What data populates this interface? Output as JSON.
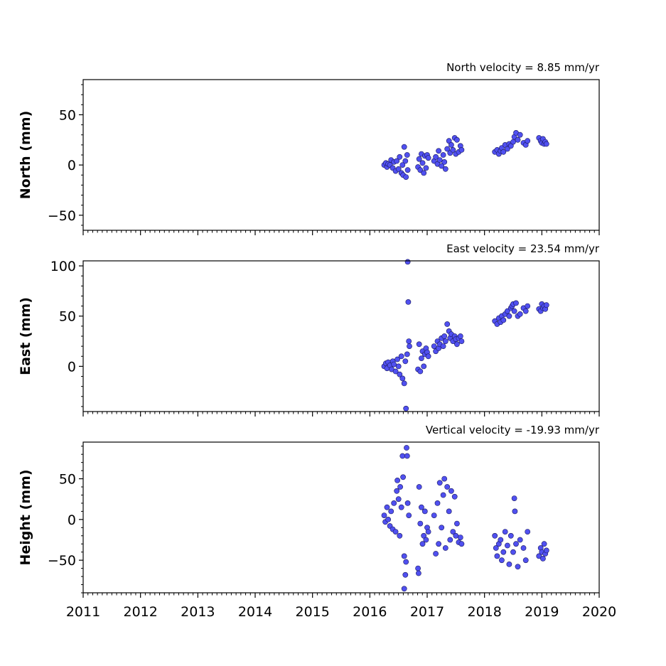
{
  "chart_data": [
    {
      "type": "scatter",
      "title": "North velocity = 8.85 mm/yr",
      "ylabel": "North (mm)",
      "xlim": [
        2011,
        2020
      ],
      "ylim": [
        -65,
        85
      ],
      "yticks": [
        "50",
        "0",
        "−50"
      ],
      "ytick_values": [
        50,
        0,
        -50
      ],
      "series": [
        {
          "x": [
            2016.25,
            2016.28,
            2016.3,
            2016.32,
            2016.35,
            2016.37,
            2016.4,
            2016.42,
            2016.45,
            2016.47,
            2016.5,
            2016.52,
            2016.55,
            2016.57,
            2016.58,
            2016.6,
            2016.62,
            2016.63,
            2016.65,
            2016.66,
            2016.84,
            2016.86,
            2016.88,
            2016.9,
            2016.92,
            2016.94,
            2016.96,
            2016.98,
            2017.0,
            2017.02,
            2017.12,
            2017.15,
            2017.18,
            2017.2,
            2017.22,
            2017.25,
            2017.28,
            2017.3,
            2017.32,
            2017.35,
            2017.38,
            2017.4,
            2017.42,
            2017.45,
            2017.48,
            2017.5,
            2017.52,
            2017.55,
            2017.58,
            2017.6,
            2018.18,
            2018.22,
            2018.25,
            2018.28,
            2018.3,
            2018.33,
            2018.36,
            2018.4,
            2018.43,
            2018.46,
            2018.5,
            2018.52,
            2018.55,
            2018.58,
            2018.62,
            2018.68,
            2018.72,
            2018.75,
            2018.95,
            2018.98,
            2019.0,
            2019.02,
            2019.04,
            2019.06,
            2019.08
          ],
          "y": [
            0,
            2,
            -2,
            1,
            0,
            5,
            -3,
            3,
            -6,
            4,
            -4,
            8,
            -8,
            0,
            -10,
            18,
            4,
            -12,
            10,
            -5,
            -2,
            6,
            -5,
            11,
            2,
            -8,
            9,
            -3,
            10,
            7,
            4,
            8,
            1,
            14,
            5,
            -1,
            10,
            3,
            -4,
            16,
            24,
            12,
            20,
            15,
            27,
            11,
            25,
            13,
            19,
            15,
            13,
            15,
            11,
            14,
            17,
            13,
            20,
            16,
            21,
            19,
            23,
            28,
            32,
            25,
            30,
            22,
            20,
            24,
            27,
            24,
            22,
            26,
            21,
            23,
            21
          ]
        }
      ]
    },
    {
      "type": "scatter",
      "title": "East velocity = 23.54 mm/yr",
      "ylabel": "East (mm)",
      "xlim": [
        2011,
        2020
      ],
      "ylim": [
        -45,
        105
      ],
      "yticks": [
        "100",
        "50",
        "0"
      ],
      "ytick_values": [
        100,
        50,
        0
      ],
      "series": [
        {
          "x": [
            2016.25,
            2016.28,
            2016.3,
            2016.32,
            2016.35,
            2016.38,
            2016.4,
            2016.42,
            2016.45,
            2016.48,
            2016.5,
            2016.52,
            2016.55,
            2016.57,
            2016.6,
            2016.62,
            2016.63,
            2016.65,
            2016.66,
            2016.67,
            2016.68,
            2016.69,
            2016.84,
            2016.86,
            2016.88,
            2016.9,
            2016.92,
            2016.94,
            2016.96,
            2016.98,
            2017.0,
            2017.02,
            2017.12,
            2017.15,
            2017.18,
            2017.2,
            2017.22,
            2017.25,
            2017.28,
            2017.3,
            2017.32,
            2017.35,
            2017.38,
            2017.4,
            2017.42,
            2017.45,
            2017.48,
            2017.5,
            2017.52,
            2017.55,
            2017.58,
            2017.6,
            2018.18,
            2018.22,
            2018.25,
            2018.28,
            2018.3,
            2018.33,
            2018.36,
            2018.4,
            2018.43,
            2018.46,
            2018.48,
            2018.5,
            2018.52,
            2018.55,
            2018.58,
            2018.62,
            2018.68,
            2018.72,
            2018.75,
            2018.95,
            2018.98,
            2019.0,
            2019.02,
            2019.04,
            2019.06,
            2019.08
          ],
          "y": [
            0,
            3,
            -2,
            4,
            1,
            -3,
            5,
            2,
            -5,
            7,
            0,
            -8,
            10,
            -12,
            -17,
            5,
            -42,
            12,
            104,
            64,
            25,
            20,
            -3,
            22,
            -5,
            8,
            15,
            0,
            12,
            18,
            14,
            10,
            20,
            15,
            25,
            18,
            22,
            28,
            20,
            30,
            25,
            42,
            35,
            28,
            32,
            25,
            30,
            27,
            22,
            28,
            30,
            25,
            45,
            42,
            48,
            44,
            50,
            46,
            52,
            55,
            50,
            58,
            60,
            62,
            55,
            63,
            50,
            52,
            58,
            55,
            60,
            57,
            55,
            62,
            58,
            60,
            57,
            61
          ]
        }
      ]
    },
    {
      "type": "scatter",
      "title": "Vertical velocity = -19.93 mm/yr",
      "ylabel": "Height (mm)",
      "xlim": [
        2011,
        2020
      ],
      "ylim": [
        -90,
        95
      ],
      "yticks": [
        "50",
        "0",
        "−50"
      ],
      "ytick_values": [
        50,
        0,
        -50
      ],
      "xticks": [
        "2011",
        "2012",
        "2013",
        "2014",
        "2015",
        "2016",
        "2017",
        "2018",
        "2019",
        "2020"
      ],
      "xtick_values": [
        2011,
        2012,
        2013,
        2014,
        2015,
        2016,
        2017,
        2018,
        2019,
        2020
      ],
      "series": [
        {
          "x": [
            2016.25,
            2016.27,
            2016.3,
            2016.32,
            2016.35,
            2016.37,
            2016.4,
            2016.42,
            2016.45,
            2016.47,
            2016.48,
            2016.5,
            2016.52,
            2016.53,
            2016.55,
            2016.57,
            2016.58,
            2016.6,
            2016.6,
            2016.62,
            2016.63,
            2016.64,
            2016.65,
            2016.66,
            2016.68,
            2016.84,
            2016.85,
            2016.86,
            2016.88,
            2016.9,
            2016.92,
            2016.94,
            2016.96,
            2016.98,
            2017.0,
            2017.02,
            2017.12,
            2017.15,
            2017.18,
            2017.2,
            2017.22,
            2017.25,
            2017.28,
            2017.3,
            2017.32,
            2017.35,
            2017.38,
            2017.4,
            2017.42,
            2017.45,
            2017.48,
            2017.5,
            2017.52,
            2017.55,
            2017.58,
            2017.6,
            2018.18,
            2018.2,
            2018.22,
            2018.25,
            2018.28,
            2018.3,
            2018.33,
            2018.36,
            2018.4,
            2018.43,
            2018.46,
            2018.5,
            2018.52,
            2018.53,
            2018.55,
            2018.58,
            2018.62,
            2018.68,
            2018.72,
            2018.75,
            2018.95,
            2018.98,
            2019.0,
            2019.02,
            2019.04,
            2019.06,
            2019.08
          ],
          "y": [
            5,
            -3,
            15,
            0,
            -8,
            10,
            -12,
            20,
            -15,
            35,
            48,
            25,
            -20,
            40,
            15,
            78,
            52,
            -45,
            -85,
            -68,
            -52,
            88,
            78,
            20,
            5,
            -60,
            -66,
            40,
            -5,
            15,
            -30,
            -20,
            10,
            -25,
            -10,
            -15,
            5,
            -42,
            20,
            -30,
            45,
            -10,
            30,
            50,
            -35,
            40,
            10,
            -25,
            35,
            -15,
            28,
            -20,
            -5,
            -28,
            -22,
            -30,
            -20,
            -35,
            -45,
            -30,
            -25,
            -50,
            -40,
            -15,
            -32,
            -55,
            -20,
            -40,
            26,
            10,
            -30,
            -58,
            -25,
            -35,
            -50,
            -15,
            -45,
            -35,
            -40,
            -48,
            -30,
            -42,
            -38
          ]
        }
      ]
    }
  ]
}
